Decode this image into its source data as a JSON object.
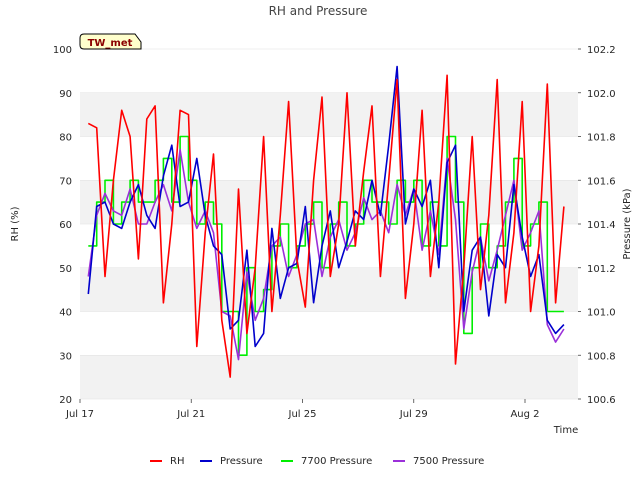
{
  "chart_data": {
    "type": "line",
    "title": "RH and Pressure",
    "site_label": "TW_met",
    "xlabel": "Time",
    "ylabel_left": "RH (%)",
    "ylabel_right": "Pressure (kPa)",
    "x_ticks": [
      {
        "label": "Jul 17",
        "day": 0
      },
      {
        "label": "Jul 21",
        "day": 4
      },
      {
        "label": "Jul 25",
        "day": 8
      },
      {
        "label": "Jul 29",
        "day": 12
      },
      {
        "label": "Aug 2",
        "day": 16
      }
    ],
    "xlim_days": [
      0,
      18
    ],
    "ylim_left": [
      20,
      100
    ],
    "yticks_left": [
      "20",
      "30",
      "40",
      "50",
      "60",
      "70",
      "80",
      "90",
      "100"
    ],
    "ylim_right": [
      100.6,
      102.2
    ],
    "yticks_right": [
      "100.6",
      "100.8",
      "101.0",
      "101.2",
      "101.4",
      "101.6",
      "101.8",
      "102.0",
      "102.2"
    ],
    "grid": "horizontal bands",
    "legend_position": "bottom",
    "series": [
      {
        "name": "RH",
        "axis": "left",
        "color": "#ff0000",
        "day": [
          0.3,
          0.6,
          0.9,
          1.2,
          1.5,
          1.8,
          2.1,
          2.4,
          2.7,
          3.0,
          3.3,
          3.6,
          3.9,
          4.2,
          4.5,
          4.8,
          5.1,
          5.4,
          5.7,
          6.0,
          6.3,
          6.6,
          6.9,
          7.2,
          7.5,
          7.8,
          8.1,
          8.4,
          8.7,
          9.0,
          9.3,
          9.6,
          9.9,
          10.2,
          10.5,
          10.8,
          11.1,
          11.4,
          11.7,
          12.0,
          12.3,
          12.6,
          12.9,
          13.2,
          13.5,
          13.8,
          14.1,
          14.4,
          14.7,
          15.0,
          15.3,
          15.6,
          15.9,
          16.2,
          16.5,
          16.8,
          17.1,
          17.4
        ],
        "values": [
          83,
          82,
          48,
          70,
          86,
          80,
          52,
          84,
          87,
          42,
          60,
          86,
          85,
          32,
          58,
          76,
          38,
          25,
          68,
          35,
          50,
          80,
          40,
          62,
          88,
          52,
          41,
          70,
          89,
          48,
          60,
          90,
          55,
          72,
          87,
          48,
          70,
          93,
          43,
          60,
          86,
          48,
          65,
          94,
          28,
          50,
          80,
          45,
          62,
          93,
          42,
          58,
          88,
          40,
          55,
          92,
          42,
          64
        ],
        "range": "Jul 17 – Aug 3"
      },
      {
        "name": "Pressure",
        "axis": "right",
        "color": "#0000cc",
        "day": [
          0.3,
          0.6,
          0.9,
          1.2,
          1.5,
          1.8,
          2.1,
          2.4,
          2.7,
          3.0,
          3.3,
          3.6,
          3.9,
          4.2,
          4.5,
          4.8,
          5.1,
          5.4,
          5.7,
          6.0,
          6.3,
          6.6,
          6.9,
          7.2,
          7.5,
          7.8,
          8.1,
          8.4,
          8.7,
          9.0,
          9.3,
          9.6,
          9.9,
          10.2,
          10.5,
          10.8,
          11.1,
          11.4,
          11.7,
          12.0,
          12.3,
          12.6,
          12.9,
          13.2,
          13.5,
          13.8,
          14.1,
          14.4,
          14.7,
          15.0,
          15.3,
          15.6,
          15.9,
          16.2,
          16.5,
          16.8,
          17.1,
          17.4
        ],
        "values": [
          101.08,
          101.48,
          101.5,
          101.4,
          101.38,
          101.5,
          101.58,
          101.44,
          101.38,
          101.62,
          101.76,
          101.48,
          101.5,
          101.7,
          101.44,
          101.3,
          101.26,
          100.92,
          100.96,
          101.28,
          100.84,
          100.9,
          101.38,
          101.06,
          101.2,
          101.22,
          101.48,
          101.04,
          101.3,
          101.46,
          101.2,
          101.32,
          101.46,
          101.42,
          101.6,
          101.44,
          101.76,
          102.12,
          101.4,
          101.56,
          101.48,
          101.6,
          101.2,
          101.68,
          101.76,
          101.0,
          101.28,
          101.34,
          100.98,
          101.26,
          101.2,
          101.58,
          101.34,
          101.16,
          101.26,
          100.96,
          100.9,
          100.94
        ],
        "range": "Jul 17 – Aug 3"
      },
      {
        "name": "7700 Pressure",
        "axis": "right",
        "color": "#00ee00",
        "day": [
          0.3,
          0.6,
          0.9,
          1.2,
          1.5,
          1.8,
          2.1,
          2.4,
          2.7,
          3.0,
          3.3,
          3.6,
          3.9,
          4.2,
          4.5,
          4.8,
          5.1,
          5.4,
          5.7,
          6.0,
          6.3,
          6.6,
          6.9,
          7.2,
          7.5,
          7.8,
          8.1,
          8.4,
          8.7,
          9.0,
          9.3,
          9.6,
          9.9,
          10.2,
          10.5,
          10.8,
          11.1,
          11.4,
          11.7,
          12.0,
          12.3,
          12.6,
          12.9,
          13.2,
          13.5,
          13.8,
          14.1,
          14.4,
          14.7,
          15.0,
          15.3,
          15.6,
          15.9,
          16.2,
          16.5,
          16.8,
          17.1,
          17.4
        ],
        "values": [
          101.3,
          101.5,
          101.6,
          101.4,
          101.5,
          101.6,
          101.5,
          101.5,
          101.6,
          101.7,
          101.5,
          101.8,
          101.6,
          101.4,
          101.5,
          101.4,
          101.0,
          101.0,
          100.8,
          101.2,
          101.0,
          101.1,
          101.3,
          101.4,
          101.2,
          101.3,
          101.4,
          101.5,
          101.2,
          101.4,
          101.5,
          101.3,
          101.4,
          101.6,
          101.5,
          101.5,
          101.4,
          101.6,
          101.5,
          101.6,
          101.3,
          101.5,
          101.3,
          101.8,
          101.5,
          100.9,
          101.2,
          101.4,
          101.2,
          101.3,
          101.5,
          101.7,
          101.3,
          101.4,
          101.5,
          101.0,
          101.0,
          101.0
        ],
        "range": "Jul 17 – Aug 3"
      },
      {
        "name": "7500 Pressure",
        "axis": "right",
        "color": "#9b30d9",
        "day": [
          0.3,
          0.6,
          0.9,
          1.2,
          1.5,
          1.8,
          2.1,
          2.4,
          2.7,
          3.0,
          3.3,
          3.6,
          3.9,
          4.2,
          4.5,
          4.8,
          5.1,
          5.4,
          5.7,
          6.0,
          6.3,
          6.6,
          6.9,
          7.2,
          7.5,
          7.8,
          8.1,
          8.4,
          8.7,
          9.0,
          9.3,
          9.6,
          9.9,
          10.2,
          10.5,
          10.8,
          11.1,
          11.4,
          11.7,
          12.0,
          12.3,
          12.6,
          12.9,
          13.2,
          13.5,
          13.8,
          14.1,
          14.4,
          14.7,
          15.0,
          15.3,
          15.6,
          15.9,
          16.2,
          16.5,
          16.8,
          17.1,
          17.4
        ],
        "values": [
          101.16,
          101.44,
          101.54,
          101.46,
          101.44,
          101.56,
          101.4,
          101.4,
          101.5,
          101.58,
          101.46,
          101.74,
          101.5,
          101.38,
          101.46,
          101.36,
          101.0,
          100.98,
          100.78,
          101.18,
          100.96,
          101.06,
          101.3,
          101.34,
          101.16,
          101.26,
          101.4,
          101.42,
          101.16,
          101.34,
          101.42,
          101.28,
          101.36,
          101.52,
          101.42,
          101.46,
          101.36,
          101.58,
          101.44,
          101.56,
          101.28,
          101.46,
          101.26,
          101.7,
          101.42,
          100.92,
          101.18,
          101.34,
          101.14,
          101.28,
          101.44,
          101.6,
          101.28,
          101.36,
          101.46,
          100.94,
          100.86,
          100.92
        ],
        "range": "Jul 17 – Aug 3"
      }
    ]
  }
}
